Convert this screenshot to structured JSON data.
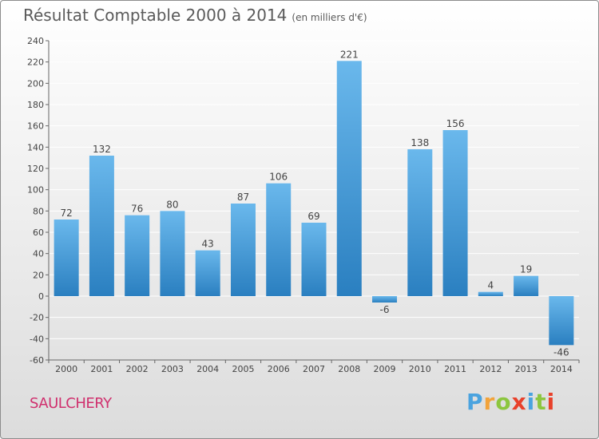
{
  "title": "Résultat Comptable 2000 à 2014",
  "subtitle": "(en milliers d'€)",
  "location": "SAULCHERY",
  "logo": {
    "letters": [
      "P",
      "r",
      "o",
      "x",
      "i",
      "t",
      "i"
    ],
    "colors": [
      "#4aa3df",
      "#f2a33a",
      "#8cc63f",
      "#e8412b",
      "#4aa3df",
      "#8cc63f",
      "#e8412b"
    ]
  },
  "colors": {
    "bar_light": "#6ab8ec",
    "bar_dark": "#2a7fc0",
    "axis": "#666666",
    "grid": "#ffffff"
  },
  "chart_data": {
    "type": "bar",
    "title": "Résultat Comptable 2000 à 2014",
    "xlabel": "",
    "ylabel": "",
    "ylim": [
      -60,
      240
    ],
    "yticks": [
      -60,
      -40,
      -20,
      0,
      20,
      40,
      60,
      80,
      100,
      120,
      140,
      160,
      180,
      200,
      220,
      240
    ],
    "categories": [
      "2000",
      "2001",
      "2002",
      "2003",
      "2004",
      "2005",
      "2006",
      "2007",
      "2008",
      "2009",
      "2010",
      "2011",
      "2012",
      "2013",
      "2014"
    ],
    "values": [
      72,
      132,
      76,
      80,
      43,
      87,
      106,
      69,
      221,
      -6,
      138,
      156,
      4,
      19,
      -46
    ],
    "grid": true
  }
}
